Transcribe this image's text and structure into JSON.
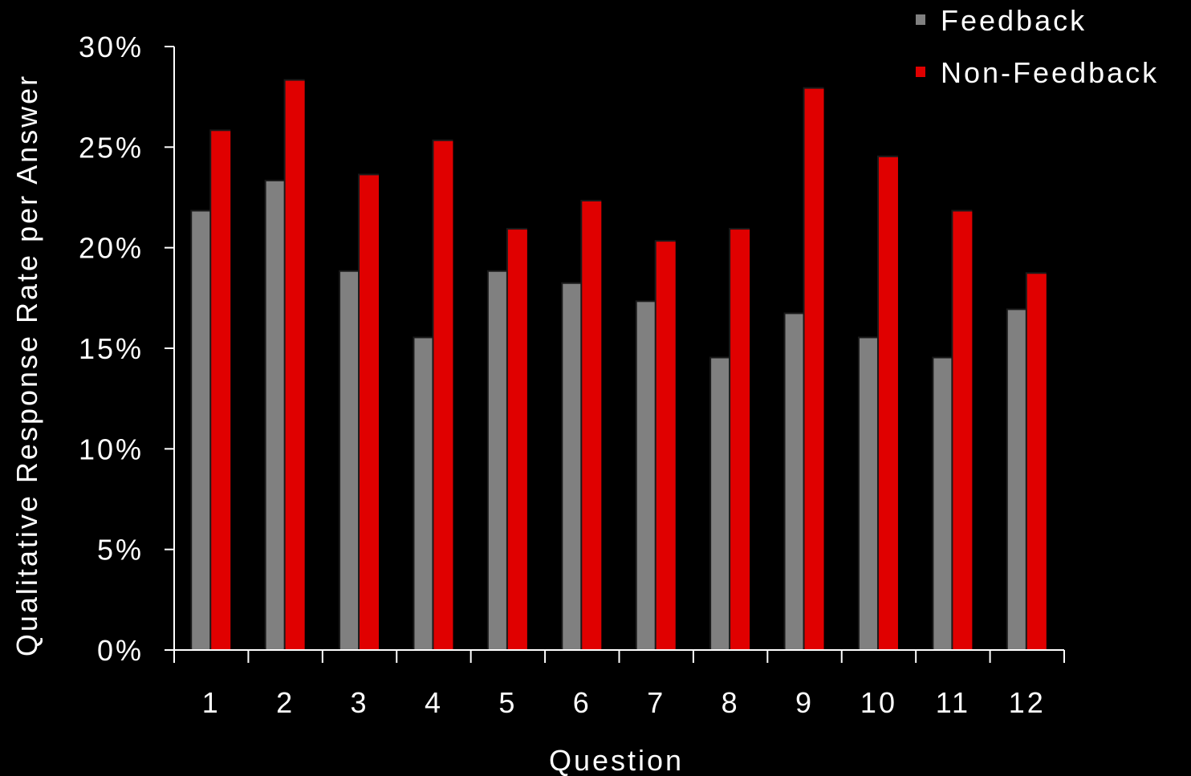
{
  "chart_data": {
    "type": "bar",
    "title": "",
    "xlabel": "Question",
    "ylabel": "Qualitative Response Rate per Answer",
    "categories": [
      "1",
      "2",
      "3",
      "4",
      "5",
      "6",
      "7",
      "8",
      "9",
      "10",
      "11",
      "12"
    ],
    "yticks": [
      0,
      5,
      10,
      15,
      20,
      25,
      30
    ],
    "ytick_labels": [
      "0%",
      "5%",
      "10%",
      "15%",
      "20%",
      "25%",
      "30%"
    ],
    "ylim": [
      0,
      30
    ],
    "grid": false,
    "legend_position": "top-right",
    "series": [
      {
        "name": "Feedback",
        "color": "#808080",
        "values": [
          21.8,
          23.3,
          18.8,
          15.5,
          18.8,
          18.2,
          17.3,
          14.5,
          16.7,
          15.5,
          14.5,
          16.9
        ]
      },
      {
        "name": "Non-Feedback",
        "color": "#e00000",
        "values": [
          25.8,
          28.3,
          23.6,
          25.3,
          20.9,
          22.3,
          20.3,
          20.9,
          27.9,
          24.5,
          21.8,
          18.7
        ]
      }
    ]
  }
}
